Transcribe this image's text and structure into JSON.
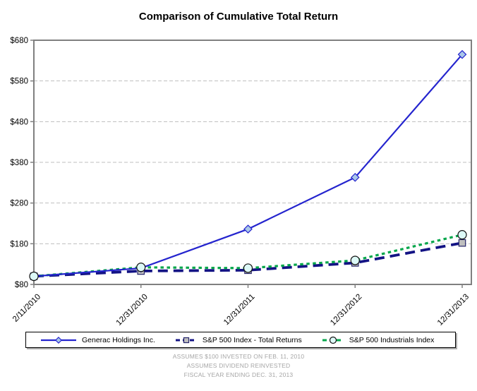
{
  "title": "Comparison of Cumulative Total Return",
  "chart_data": {
    "type": "line",
    "x_categories": [
      "2/11/2010",
      "12/31/2010",
      "12/31/2011",
      "12/31/2012",
      "12/31/2013"
    ],
    "series": [
      {
        "name": "Generac Holdings Inc.",
        "values": [
          100,
          120,
          216,
          343,
          645
        ],
        "color": "#2424ce",
        "line_style": "solid",
        "marker": "diamond",
        "marker_fill": "#a9c7e8",
        "marker_stroke": "#2424ce"
      },
      {
        "name": "S&P 500 Index - Total Returns",
        "values": [
          100,
          113,
          115,
          133,
          182
        ],
        "color": "#131384",
        "line_style": "long-dash",
        "marker": "square",
        "marker_fill": "#bfbfbf",
        "marker_stroke": "#26266b"
      },
      {
        "name": "S&P 500 Industrials Index",
        "values": [
          100,
          122,
          120,
          139,
          202
        ],
        "color": "#05a64b",
        "line_style": "short-dash",
        "marker": "circle",
        "marker_fill": "#ddf9f7",
        "marker_stroke": "#111111"
      }
    ],
    "ylim": [
      80,
      680
    ],
    "ytick_step": 100,
    "ytick_prefix": "$",
    "ytick_labels": [
      "$80",
      "$180",
      "$280",
      "$380",
      "$480",
      "$580",
      "$680"
    ],
    "grid": "horizontal-dashed",
    "gridline_color": "#bfbfbf",
    "plot_border_color": "#808080",
    "legend_position": "bottom"
  },
  "footnotes": [
    "ASSUMES $100 INVESTED ON FEB. 11, 2010",
    "ASSUMES DIVIDEND REINVESTED",
    "FISCAL YEAR ENDING DEC. 31, 2013"
  ]
}
